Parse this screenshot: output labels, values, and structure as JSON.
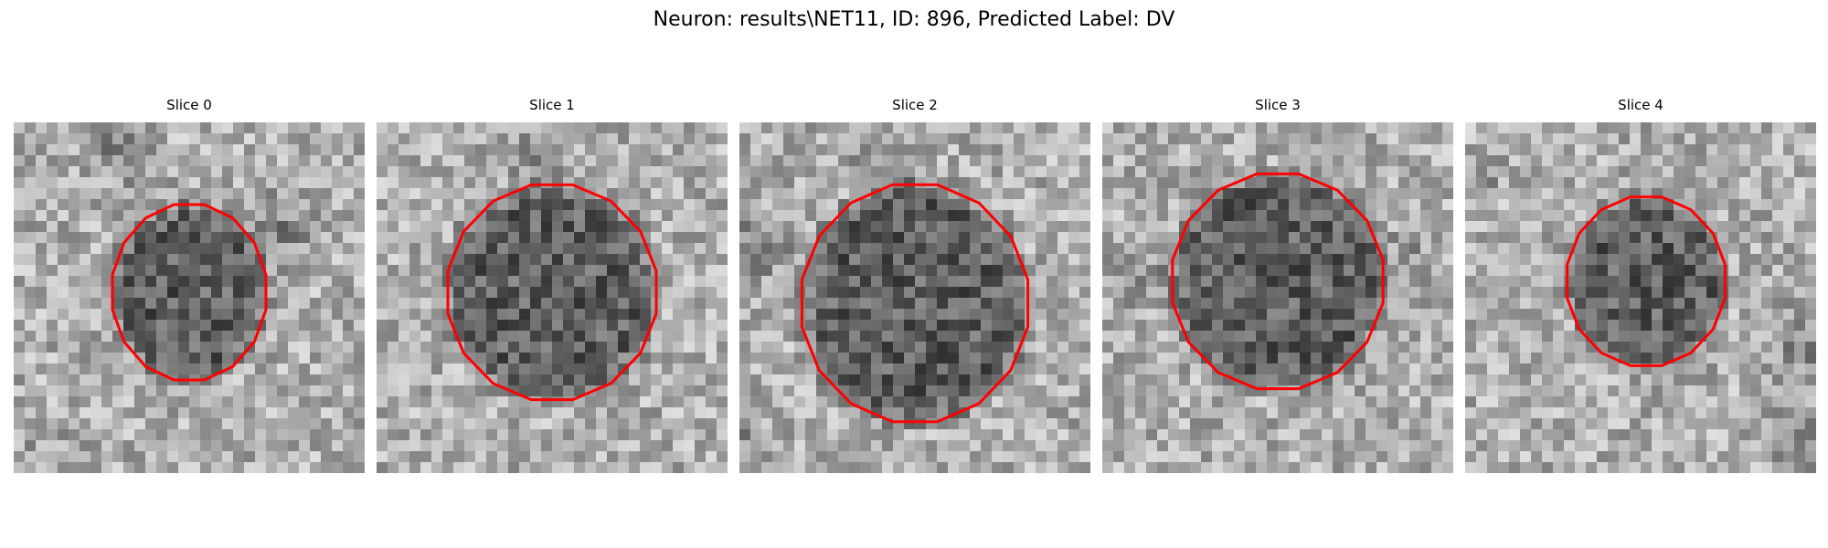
{
  "title": "Neuron: results\\NET11, ID: 896, Predicted Label: DV",
  "panels": [
    {
      "label": "Slice 0"
    },
    {
      "label": "Slice 1"
    },
    {
      "label": "Slice 2"
    },
    {
      "label": "Slice 3"
    },
    {
      "label": "Slice 4"
    }
  ],
  "colors": {
    "contour": "#ff0000",
    "background": "#ffffff",
    "text": "#000000"
  },
  "colormap": "grayscale"
}
